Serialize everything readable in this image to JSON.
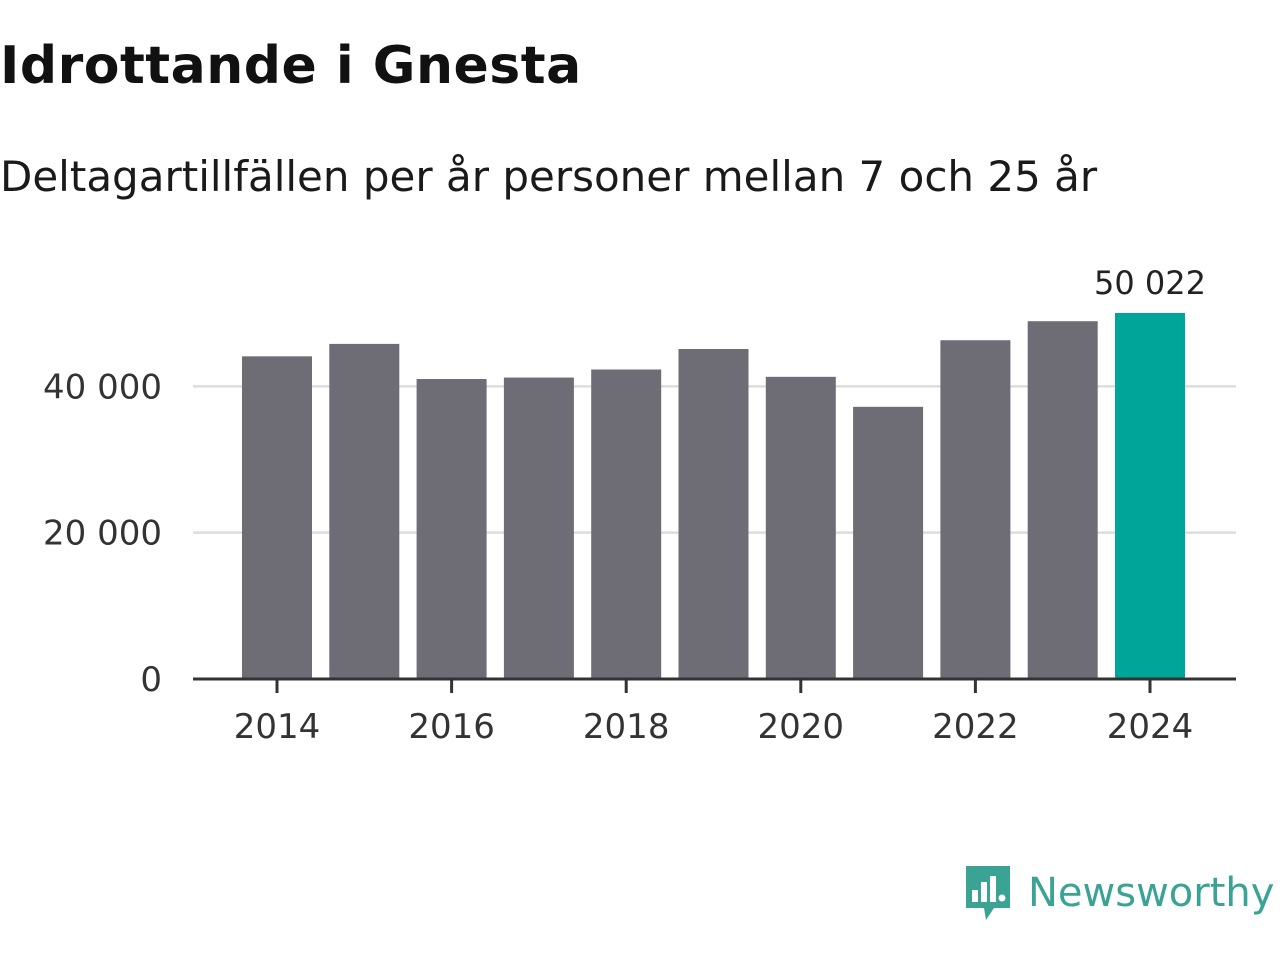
{
  "title": "Idrottande i Gnesta",
  "subtitle": "Deltagartillfällen per år personer mellan 7 och 25 år",
  "brand": {
    "name": "Newsworthy",
    "color": "#3aa394"
  },
  "chart_data": {
    "type": "bar",
    "title": "Idrottande i Gnesta",
    "subtitle": "Deltagartillfällen per år personer mellan 7 och 25 år",
    "xlabel": "",
    "ylabel": "",
    "categories": [
      "2014",
      "2015",
      "2016",
      "2017",
      "2018",
      "2019",
      "2020",
      "2021",
      "2022",
      "2023",
      "2024"
    ],
    "values": [
      44100,
      45800,
      41000,
      41200,
      42300,
      45100,
      41300,
      37200,
      46300,
      48900,
      50022
    ],
    "ylim": [
      0,
      52000
    ],
    "yticks": [
      0,
      20000,
      40000
    ],
    "ytick_labels": [
      "0",
      "20 000",
      "40 000"
    ],
    "xticks": [
      "2014",
      "2016",
      "2018",
      "2020",
      "2022",
      "2024"
    ],
    "highlight_index": 10,
    "highlight_label": "50 022",
    "colors": {
      "bar": "#6e6d75",
      "highlight": "#00a59a",
      "grid": "#dddddd",
      "axis": "#333333"
    },
    "grid": true
  }
}
